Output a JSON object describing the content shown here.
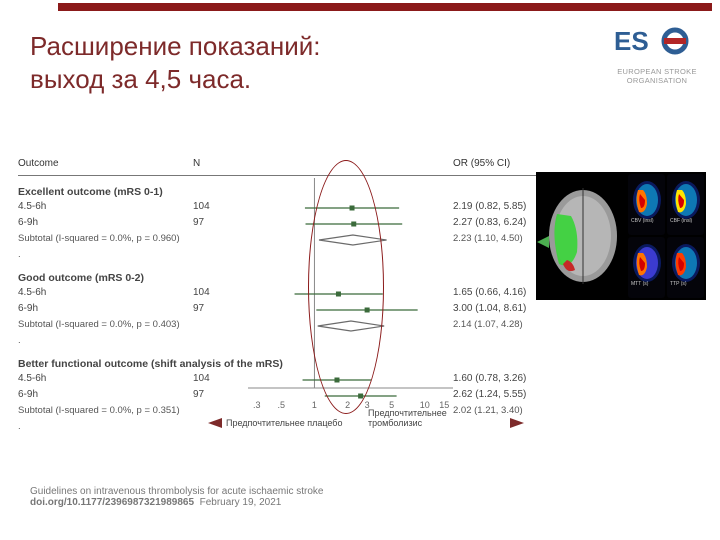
{
  "header": {
    "bar_color": "#8b1a1a",
    "title_line1": "Расширение показаний:",
    "title_line2": "выход за 4,5 часа.",
    "title_color": "#7d2a2a"
  },
  "logo": {
    "blue": "#2e5e94",
    "red": "#b22626",
    "subtitle": "EUROPEAN STROKE ORGANISATION"
  },
  "forest": {
    "columns": {
      "outcome": "Outcome",
      "n": "N",
      "or": "OR (95% CI)"
    },
    "axis": {
      "type": "log",
      "ticks": [
        0.3,
        0.5,
        1,
        2,
        3,
        5,
        10,
        15
      ],
      "min": 0.25,
      "max": 18,
      "tick_fontsize": 9,
      "line_color": "#888"
    },
    "null_line_x": 1,
    "groups": [
      {
        "title": "Excellent outcome (mRS 0-1)",
        "rows": [
          {
            "label": "4.5-6h",
            "n": 104,
            "or": 2.19,
            "lo": 0.82,
            "hi": 5.85
          },
          {
            "label": "6-9h",
            "n": 97,
            "or": 2.27,
            "lo": 0.83,
            "hi": 6.24
          }
        ],
        "subtotal": {
          "label": "Subtotal  (I-squared = 0.0%, p = 0.960)",
          "or": 2.23,
          "lo": 1.1,
          "hi": 4.5
        }
      },
      {
        "title": "Good outcome (mRS 0-2)",
        "rows": [
          {
            "label": "4.5-6h",
            "n": 104,
            "or": 1.65,
            "lo": 0.66,
            "hi": 4.16
          },
          {
            "label": "6-9h",
            "n": 97,
            "or": 3.0,
            "lo": 1.04,
            "hi": 8.61
          }
        ],
        "subtotal": {
          "label": "Subtotal  (I-squared = 0.0%, p = 0.403)",
          "or": 2.14,
          "lo": 1.07,
          "hi": 4.28
        }
      },
      {
        "title": "Better functional outcome  (shift analysis of the mRS)",
        "rows": [
          {
            "label": "4.5-6h",
            "n": 104,
            "or": 1.6,
            "lo": 0.78,
            "hi": 3.26
          },
          {
            "label": "6-9h",
            "n": 97,
            "or": 2.62,
            "lo": 1.24,
            "hi": 5.55
          }
        ],
        "subtotal": {
          "label": "Subtotal  (I-squared = 0.0%, p = 0.351)",
          "or": 2.02,
          "lo": 1.21,
          "hi": 3.4
        }
      }
    ],
    "marker": {
      "shape": "square",
      "size": 5,
      "color": "#3b6b3b",
      "ci_color": "#3b6b3b",
      "diamond_fill": "none",
      "diamond_stroke": "#6b6b6b"
    },
    "favors": {
      "left": "Предпочтительнее плацебо",
      "right": "Предпочтительнее тромболизис",
      "arrow_color": "#7d2a2a"
    },
    "ellipse": {
      "color": "#8b1a1a"
    }
  },
  "guideline": {
    "text": "Guidelines on intravenous thrombolysis for acute ischaemic stroke",
    "doi": "doi.org/10.1177/2396987321989865",
    "date": "February 19, 2021"
  },
  "ct_panel": {
    "main": {
      "lesion_primary": "#3bd43b",
      "lesion_secondary": "#c62828",
      "brain": "#b0b0b0",
      "arrow": "#4caf50",
      "midline": "#333"
    },
    "minis": [
      {
        "palette": [
          "#0a1a5e",
          "#0e78b4",
          "#ffe400",
          "#ff7400",
          "#d40000"
        ],
        "label": "CBV (insl)"
      },
      {
        "palette": [
          "#0a1a5e",
          "#0e78b4",
          "#20c45e",
          "#ffe400",
          "#d40000"
        ],
        "label": "CBF (insl)"
      },
      {
        "palette": [
          "#0a1a5e",
          "#3b3bd0",
          "#ffe400",
          "#ff7400",
          "#d40000"
        ],
        "label": "MTT (s)"
      },
      {
        "palette": [
          "#0a1a5e",
          "#0e78b4",
          "#ffe400",
          "#ff3c00",
          "#d40000"
        ],
        "label": "TTP (s)"
      }
    ]
  }
}
